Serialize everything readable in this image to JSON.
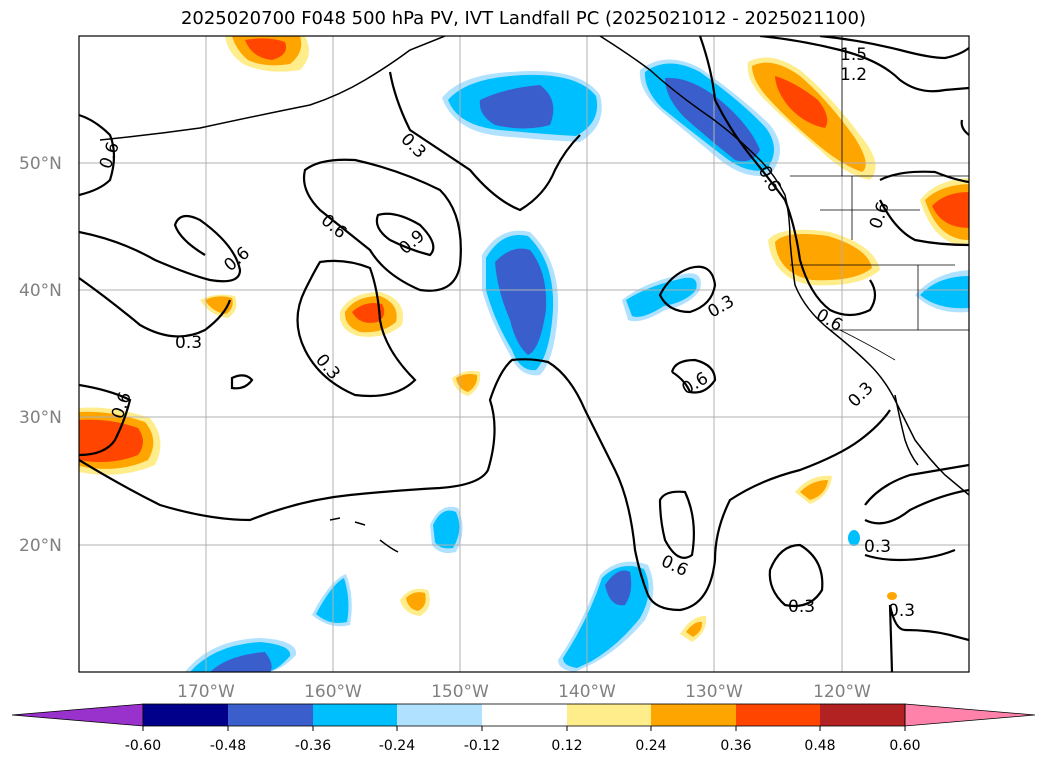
{
  "title": "2025020700 F048 500 hPa PV, IVT Landfall PC (2025021012 - 2025021100)",
  "map": {
    "projection": "PlateCarree",
    "lon_range": [
      -180,
      -110
    ],
    "lat_range": [
      10,
      60
    ],
    "lat_labels": [
      "20°N",
      "30°N",
      "40°N",
      "50°N"
    ],
    "lon_labels": [
      "170°W",
      "160°W",
      "150°W",
      "140°W",
      "130°W",
      "120°W"
    ]
  },
  "colorbar": {
    "ticks": [
      "-0.60",
      "-0.48",
      "-0.36",
      "-0.24",
      "-0.12",
      "0.12",
      "0.24",
      "0.36",
      "0.48",
      "0.60"
    ],
    "colors": [
      "#9932CC",
      "#00008B",
      "#3A5FCD",
      "#00BFFF",
      "#B0E2FF",
      "#FFFFFF",
      "#FFEC8B",
      "#FFA500",
      "#FF4500",
      "#B22222",
      "#FF82AB"
    ]
  },
  "contour_labels": [
    "0.3",
    "0.6",
    "0.9",
    "1.2",
    "1.5"
  ]
}
